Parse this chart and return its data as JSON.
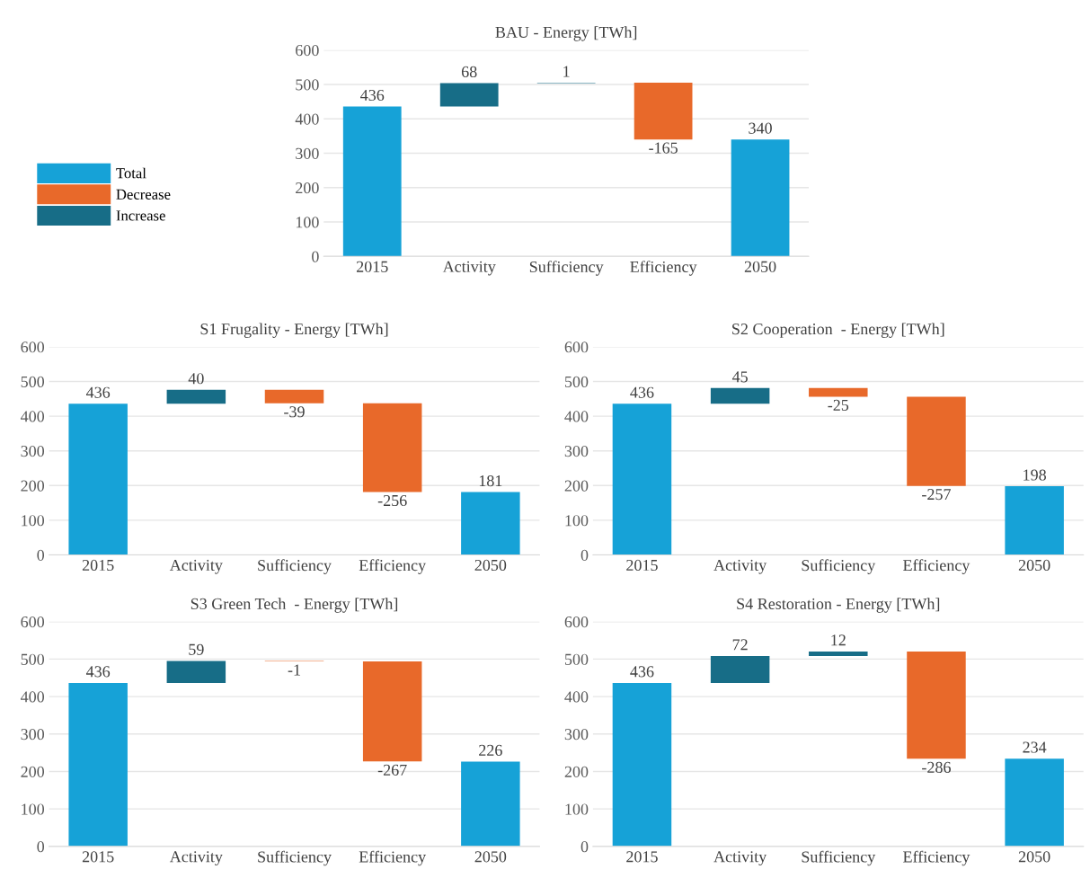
{
  "chart_data": [
    {
      "type": "bar",
      "title": "BAU - Energy [TWh]",
      "categories": [
        "2015",
        "Activity",
        "Sufficiency",
        "Efficiency",
        "2050"
      ],
      "series": [
        {
          "name": "Total",
          "color": "#16a2d7",
          "values": [
            436,
            null,
            null,
            null,
            340
          ],
          "base": [
            0,
            null,
            null,
            null,
            0
          ]
        },
        {
          "name": "Decrease",
          "color": "#e8692a",
          "values": [
            null,
            null,
            null,
            -165,
            null
          ],
          "base": [
            null,
            null,
            null,
            505,
            null
          ]
        },
        {
          "name": "Increase",
          "color": "#176d87",
          "values": [
            null,
            68,
            1,
            null,
            null
          ],
          "base": [
            null,
            436,
            504,
            null,
            null
          ]
        }
      ],
      "ylim": [
        0,
        600
      ],
      "yticks": [
        0,
        100,
        200,
        300,
        400,
        500,
        600
      ],
      "grid": "y",
      "legend": "left",
      "data_labels": true
    },
    {
      "type": "bar",
      "title": "S1 Frugality - Energy [TWh]",
      "categories": [
        "2015",
        "Activity",
        "Sufficiency",
        "Efficiency",
        "2050"
      ],
      "series": [
        {
          "color": "#16a2d7",
          "values": [
            436,
            null,
            null,
            null,
            181
          ],
          "base": [
            0,
            null,
            null,
            null,
            0
          ]
        },
        {
          "color": "#e8692a",
          "values": [
            null,
            null,
            -39,
            -256,
            null
          ],
          "base": [
            null,
            null,
            476,
            437,
            null
          ]
        },
        {
          "color": "#176d87",
          "values": [
            null,
            40,
            null,
            null,
            null
          ],
          "base": [
            null,
            436,
            null,
            null,
            null
          ]
        }
      ],
      "ylim": [
        0,
        600
      ],
      "yticks": [
        0,
        100,
        200,
        300,
        400,
        500,
        600
      ],
      "grid": "y",
      "data_labels": true
    },
    {
      "type": "bar",
      "title": "S2 Cooperation  - Energy [TWh]",
      "categories": [
        "2015",
        "Activity",
        "Sufficiency",
        "Efficiency",
        "2050"
      ],
      "series": [
        {
          "color": "#16a2d7",
          "values": [
            436,
            null,
            null,
            null,
            198
          ],
          "base": [
            0,
            null,
            null,
            null,
            0
          ]
        },
        {
          "color": "#e8692a",
          "values": [
            null,
            null,
            -25,
            -257,
            null
          ],
          "base": [
            null,
            null,
            481,
            456,
            null
          ]
        },
        {
          "color": "#176d87",
          "values": [
            null,
            45,
            null,
            null,
            null
          ],
          "base": [
            null,
            436,
            null,
            null,
            null
          ]
        }
      ],
      "ylim": [
        0,
        600
      ],
      "yticks": [
        0,
        100,
        200,
        300,
        400,
        500,
        600
      ],
      "grid": "y",
      "data_labels": true
    },
    {
      "type": "bar",
      "title": "S3 Green Tech  - Energy [TWh]",
      "categories": [
        "2015",
        "Activity",
        "Sufficiency",
        "Efficiency",
        "2050"
      ],
      "series": [
        {
          "color": "#16a2d7",
          "values": [
            436,
            null,
            null,
            null,
            226
          ],
          "base": [
            0,
            null,
            null,
            null,
            0
          ]
        },
        {
          "color": "#e8692a",
          "values": [
            null,
            null,
            -1,
            -267,
            null
          ],
          "base": [
            null,
            null,
            495,
            494,
            null
          ]
        },
        {
          "color": "#176d87",
          "values": [
            null,
            59,
            null,
            null,
            null
          ],
          "base": [
            null,
            436,
            null,
            null,
            null
          ]
        }
      ],
      "ylim": [
        0,
        600
      ],
      "yticks": [
        0,
        100,
        200,
        300,
        400,
        500,
        600
      ],
      "grid": "y",
      "data_labels": true
    },
    {
      "type": "bar",
      "title": "S4 Restoration - Energy [TWh]",
      "categories": [
        "2015",
        "Activity",
        "Sufficiency",
        "Efficiency",
        "2050"
      ],
      "series": [
        {
          "color": "#16a2d7",
          "values": [
            436,
            null,
            null,
            null,
            234
          ],
          "base": [
            0,
            null,
            null,
            null,
            0
          ]
        },
        {
          "color": "#e8692a",
          "values": [
            null,
            null,
            null,
            -286,
            null
          ],
          "base": [
            null,
            null,
            null,
            520,
            null
          ]
        },
        {
          "color": "#176d87",
          "values": [
            null,
            72,
            12,
            null,
            null
          ],
          "base": [
            null,
            436,
            508,
            null,
            null
          ]
        }
      ],
      "ylim": [
        0,
        600
      ],
      "yticks": [
        0,
        100,
        200,
        300,
        400,
        500,
        600
      ],
      "grid": "y",
      "data_labels": true
    }
  ]
}
